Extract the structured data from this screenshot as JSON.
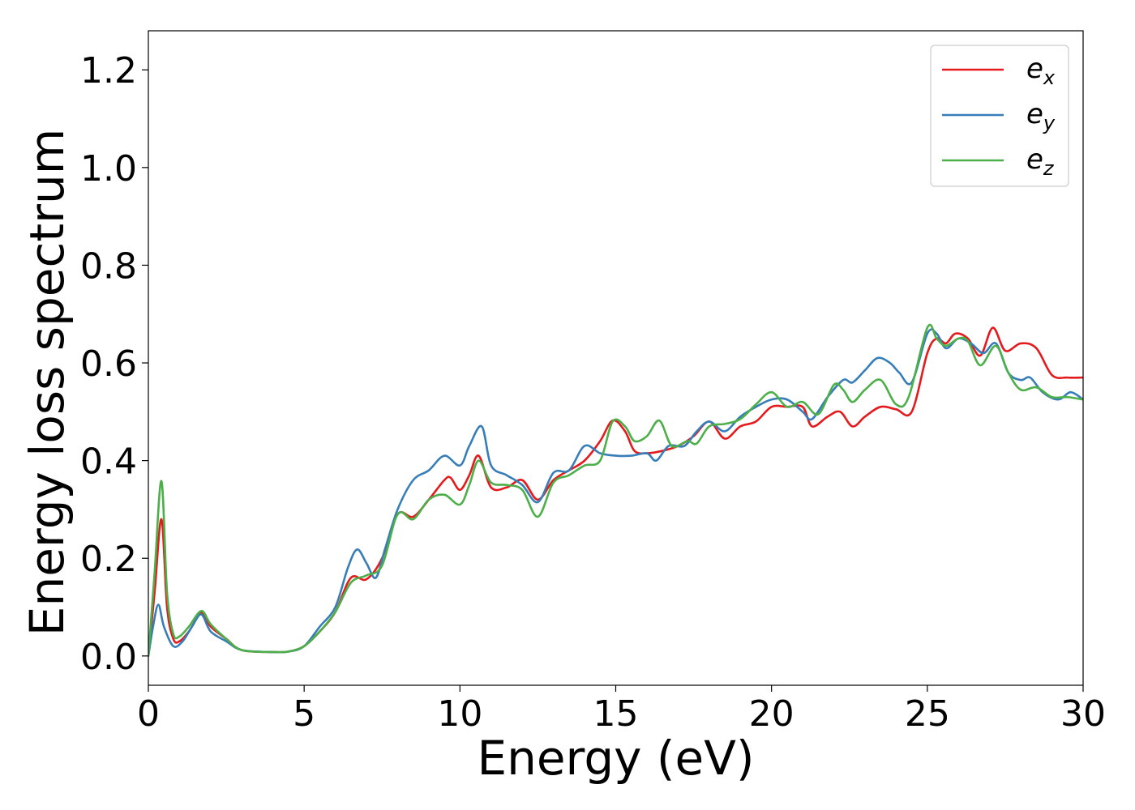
{
  "chart_data": {
    "type": "line",
    "title": "",
    "xlabel": "Energy (eV)",
    "ylabel": "Energy loss spectrum",
    "xlim": [
      0,
      30
    ],
    "ylim": [
      -0.06,
      1.28
    ],
    "xticks": [
      0,
      5,
      10,
      15,
      20,
      25,
      30
    ],
    "xtick_labels": [
      "0",
      "5",
      "10",
      "15",
      "20",
      "25",
      "30"
    ],
    "yticks": [
      0.0,
      0.2,
      0.4,
      0.6,
      0.8,
      1.0,
      1.2
    ],
    "ytick_labels": [
      "0.0",
      "0.2",
      "0.4",
      "0.6",
      "0.8",
      "1.0",
      "1.2"
    ],
    "grid": false,
    "legend_position": "top-right",
    "series": [
      {
        "name": "e_x",
        "legend_base": "e",
        "legend_sub": "x",
        "color": "#e41a1c",
        "points": [
          [
            0,
            0.0
          ],
          [
            0.2,
            0.13
          ],
          [
            0.42,
            0.28
          ],
          [
            0.6,
            0.1
          ],
          [
            0.8,
            0.035
          ],
          [
            1.0,
            0.03
          ],
          [
            1.3,
            0.05
          ],
          [
            1.7,
            0.088
          ],
          [
            2.0,
            0.06
          ],
          [
            2.5,
            0.035
          ],
          [
            3.0,
            0.012
          ],
          [
            4.0,
            0.008
          ],
          [
            4.5,
            0.009
          ],
          [
            5.0,
            0.02
          ],
          [
            5.5,
            0.05
          ],
          [
            6.0,
            0.09
          ],
          [
            6.5,
            0.16
          ],
          [
            7.0,
            0.157
          ],
          [
            7.5,
            0.2
          ],
          [
            8.0,
            0.29
          ],
          [
            8.5,
            0.285
          ],
          [
            9.0,
            0.32
          ],
          [
            9.5,
            0.36
          ],
          [
            9.7,
            0.365
          ],
          [
            10.0,
            0.34
          ],
          [
            10.3,
            0.37
          ],
          [
            10.6,
            0.41
          ],
          [
            11.0,
            0.345
          ],
          [
            11.5,
            0.345
          ],
          [
            12.0,
            0.36
          ],
          [
            12.5,
            0.32
          ],
          [
            13.0,
            0.36
          ],
          [
            13.5,
            0.38
          ],
          [
            14.0,
            0.4
          ],
          [
            14.5,
            0.44
          ],
          [
            14.9,
            0.482
          ],
          [
            15.3,
            0.46
          ],
          [
            15.6,
            0.42
          ],
          [
            16.0,
            0.415
          ],
          [
            16.5,
            0.42
          ],
          [
            17.0,
            0.43
          ],
          [
            17.5,
            0.45
          ],
          [
            18.0,
            0.48
          ],
          [
            18.5,
            0.445
          ],
          [
            19.0,
            0.47
          ],
          [
            19.5,
            0.48
          ],
          [
            20.0,
            0.51
          ],
          [
            20.5,
            0.51
          ],
          [
            21.0,
            0.51
          ],
          [
            21.3,
            0.47
          ],
          [
            21.8,
            0.49
          ],
          [
            22.2,
            0.5
          ],
          [
            22.6,
            0.47
          ],
          [
            23.0,
            0.49
          ],
          [
            23.5,
            0.51
          ],
          [
            24.0,
            0.505
          ],
          [
            24.5,
            0.5
          ],
          [
            25.0,
            0.62
          ],
          [
            25.3,
            0.65
          ],
          [
            25.6,
            0.64
          ],
          [
            25.9,
            0.66
          ],
          [
            26.3,
            0.65
          ],
          [
            26.7,
            0.615
          ],
          [
            27.1,
            0.672
          ],
          [
            27.5,
            0.625
          ],
          [
            28.0,
            0.64
          ],
          [
            28.5,
            0.63
          ],
          [
            29.0,
            0.575
          ],
          [
            29.5,
            0.57
          ],
          [
            30.0,
            0.57
          ]
        ]
      },
      {
        "name": "e_y",
        "legend_base": "e",
        "legend_sub": "y",
        "color": "#377eb8",
        "points": [
          [
            0,
            0.0
          ],
          [
            0.15,
            0.06
          ],
          [
            0.32,
            0.105
          ],
          [
            0.5,
            0.06
          ],
          [
            0.8,
            0.02
          ],
          [
            1.1,
            0.03
          ],
          [
            1.4,
            0.06
          ],
          [
            1.7,
            0.085
          ],
          [
            2.0,
            0.05
          ],
          [
            2.5,
            0.03
          ],
          [
            3.0,
            0.012
          ],
          [
            4.0,
            0.008
          ],
          [
            4.5,
            0.009
          ],
          [
            5.0,
            0.02
          ],
          [
            5.5,
            0.06
          ],
          [
            6.0,
            0.1
          ],
          [
            6.4,
            0.18
          ],
          [
            6.7,
            0.218
          ],
          [
            7.0,
            0.19
          ],
          [
            7.3,
            0.16
          ],
          [
            7.6,
            0.22
          ],
          [
            8.0,
            0.3
          ],
          [
            8.5,
            0.36
          ],
          [
            9.0,
            0.38
          ],
          [
            9.5,
            0.41
          ],
          [
            10.0,
            0.39
          ],
          [
            10.3,
            0.43
          ],
          [
            10.7,
            0.47
          ],
          [
            11.0,
            0.39
          ],
          [
            11.5,
            0.37
          ],
          [
            12.0,
            0.35
          ],
          [
            12.5,
            0.315
          ],
          [
            13.0,
            0.375
          ],
          [
            13.5,
            0.38
          ],
          [
            14.0,
            0.43
          ],
          [
            14.5,
            0.415
          ],
          [
            15.0,
            0.41
          ],
          [
            15.5,
            0.41
          ],
          [
            16.0,
            0.415
          ],
          [
            16.3,
            0.4
          ],
          [
            16.7,
            0.43
          ],
          [
            17.2,
            0.43
          ],
          [
            17.6,
            0.46
          ],
          [
            18.0,
            0.48
          ],
          [
            18.5,
            0.46
          ],
          [
            19.0,
            0.49
          ],
          [
            19.5,
            0.51
          ],
          [
            20.0,
            0.525
          ],
          [
            20.5,
            0.525
          ],
          [
            21.0,
            0.5
          ],
          [
            21.3,
            0.485
          ],
          [
            21.8,
            0.53
          ],
          [
            22.3,
            0.565
          ],
          [
            22.6,
            0.56
          ],
          [
            23.0,
            0.585
          ],
          [
            23.4,
            0.61
          ],
          [
            23.8,
            0.6
          ],
          [
            24.1,
            0.58
          ],
          [
            24.5,
            0.56
          ],
          [
            25.0,
            0.66
          ],
          [
            25.3,
            0.66
          ],
          [
            25.6,
            0.63
          ],
          [
            26.0,
            0.65
          ],
          [
            26.4,
            0.64
          ],
          [
            26.8,
            0.62
          ],
          [
            27.2,
            0.64
          ],
          [
            27.6,
            0.58
          ],
          [
            28.0,
            0.565
          ],
          [
            28.3,
            0.57
          ],
          [
            28.7,
            0.54
          ],
          [
            29.2,
            0.525
          ],
          [
            29.6,
            0.54
          ],
          [
            30.0,
            0.525
          ]
        ]
      },
      {
        "name": "e_z",
        "legend_base": "e",
        "legend_sub": "z",
        "color": "#4daf4a",
        "points": [
          [
            0,
            0.0
          ],
          [
            0.2,
            0.17
          ],
          [
            0.42,
            0.358
          ],
          [
            0.6,
            0.13
          ],
          [
            0.8,
            0.045
          ],
          [
            1.0,
            0.04
          ],
          [
            1.3,
            0.06
          ],
          [
            1.7,
            0.092
          ],
          [
            2.0,
            0.065
          ],
          [
            2.5,
            0.035
          ],
          [
            3.0,
            0.012
          ],
          [
            4.0,
            0.008
          ],
          [
            4.5,
            0.009
          ],
          [
            5.0,
            0.02
          ],
          [
            5.5,
            0.05
          ],
          [
            6.0,
            0.09
          ],
          [
            6.5,
            0.15
          ],
          [
            7.0,
            0.165
          ],
          [
            7.5,
            0.185
          ],
          [
            8.0,
            0.29
          ],
          [
            8.5,
            0.28
          ],
          [
            9.0,
            0.32
          ],
          [
            9.5,
            0.33
          ],
          [
            10.0,
            0.31
          ],
          [
            10.3,
            0.35
          ],
          [
            10.6,
            0.4
          ],
          [
            11.0,
            0.355
          ],
          [
            11.5,
            0.35
          ],
          [
            12.0,
            0.34
          ],
          [
            12.5,
            0.285
          ],
          [
            13.0,
            0.355
          ],
          [
            13.5,
            0.37
          ],
          [
            14.0,
            0.39
          ],
          [
            14.5,
            0.4
          ],
          [
            14.9,
            0.48
          ],
          [
            15.3,
            0.47
          ],
          [
            15.6,
            0.44
          ],
          [
            16.0,
            0.45
          ],
          [
            16.4,
            0.482
          ],
          [
            16.8,
            0.43
          ],
          [
            17.3,
            0.44
          ],
          [
            17.6,
            0.435
          ],
          [
            18.0,
            0.47
          ],
          [
            18.5,
            0.475
          ],
          [
            19.0,
            0.485
          ],
          [
            19.5,
            0.515
          ],
          [
            20.0,
            0.54
          ],
          [
            20.5,
            0.51
          ],
          [
            21.0,
            0.52
          ],
          [
            21.5,
            0.495
          ],
          [
            22.0,
            0.555
          ],
          [
            22.3,
            0.545
          ],
          [
            22.6,
            0.52
          ],
          [
            23.0,
            0.545
          ],
          [
            23.5,
            0.565
          ],
          [
            24.0,
            0.515
          ],
          [
            24.4,
            0.53
          ],
          [
            25.0,
            0.672
          ],
          [
            25.3,
            0.65
          ],
          [
            25.6,
            0.635
          ],
          [
            26.0,
            0.65
          ],
          [
            26.3,
            0.645
          ],
          [
            26.7,
            0.595
          ],
          [
            27.2,
            0.635
          ],
          [
            27.6,
            0.58
          ],
          [
            28.0,
            0.545
          ],
          [
            28.5,
            0.55
          ],
          [
            29.0,
            0.53
          ],
          [
            29.5,
            0.53
          ],
          [
            30.0,
            0.525
          ]
        ]
      }
    ]
  }
}
